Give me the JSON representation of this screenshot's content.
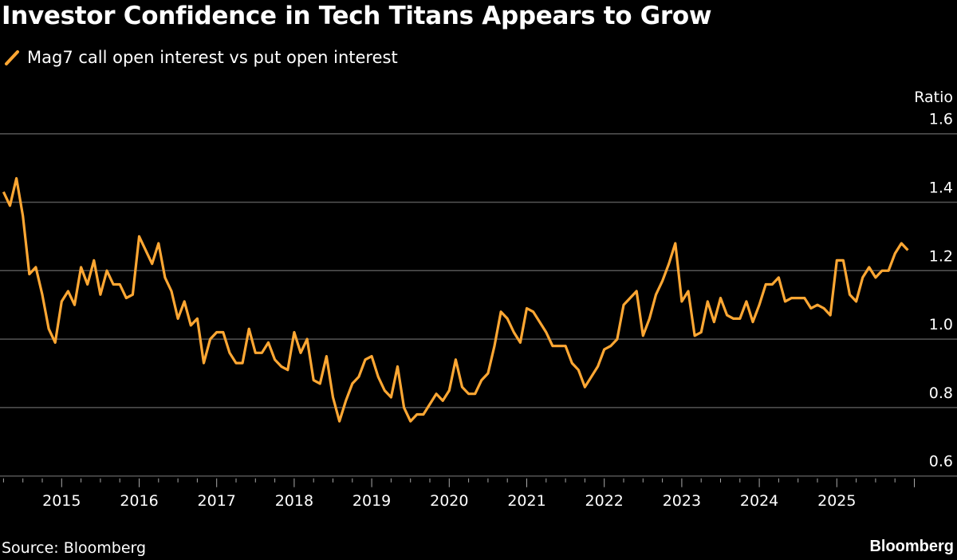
{
  "title": "Investor Confidence in Tech Titans Appears to Grow",
  "source": "Source: Bloomberg",
  "logo": "Bloomberg",
  "colors": {
    "background": "#000000",
    "series": "#ffa733",
    "grid": "#555555",
    "text": "#ffffff"
  },
  "legend": {
    "icon": "slash-line-icon",
    "label": "Mag7 call open interest vs put open interest"
  },
  "chart_data": {
    "type": "line",
    "title": "Investor Confidence in Tech Titans Appears to Grow",
    "ylabel": "Ratio",
    "ylim": [
      0.6,
      1.6
    ],
    "yticks": [
      "0.6",
      "0.8",
      "1.0",
      "1.2",
      "1.4",
      "1.6"
    ],
    "xticks": [
      "2015",
      "2016",
      "2017",
      "2018",
      "2019",
      "2020",
      "2021",
      "2022",
      "2023",
      "2024",
      "2025"
    ],
    "xlim": [
      "2014-04",
      "2025-12"
    ],
    "grid": true,
    "legend_position": "top-left",
    "series": [
      {
        "name": "Mag7 call open interest vs put open interest",
        "x": [
          "2014-04",
          "2014-05",
          "2014-06",
          "2014-07",
          "2014-08",
          "2014-09",
          "2014-10",
          "2014-11",
          "2014-12",
          "2015-01",
          "2015-02",
          "2015-03",
          "2015-04",
          "2015-05",
          "2015-06",
          "2015-07",
          "2015-08",
          "2015-09",
          "2015-10",
          "2015-11",
          "2015-12",
          "2016-01",
          "2016-02",
          "2016-03",
          "2016-04",
          "2016-05",
          "2016-06",
          "2016-07",
          "2016-08",
          "2016-09",
          "2016-10",
          "2016-11",
          "2016-12",
          "2017-01",
          "2017-02",
          "2017-03",
          "2017-04",
          "2017-05",
          "2017-06",
          "2017-07",
          "2017-08",
          "2017-09",
          "2017-10",
          "2017-11",
          "2017-12",
          "2018-01",
          "2018-02",
          "2018-03",
          "2018-04",
          "2018-05",
          "2018-06",
          "2018-07",
          "2018-08",
          "2018-09",
          "2018-10",
          "2018-11",
          "2018-12",
          "2019-01",
          "2019-02",
          "2019-03",
          "2019-04",
          "2019-05",
          "2019-06",
          "2019-07",
          "2019-08",
          "2019-09",
          "2019-10",
          "2019-11",
          "2019-12",
          "2020-01",
          "2020-02",
          "2020-03",
          "2020-04",
          "2020-05",
          "2020-06",
          "2020-07",
          "2020-08",
          "2020-09",
          "2020-10",
          "2020-11",
          "2020-12",
          "2021-01",
          "2021-02",
          "2021-03",
          "2021-04",
          "2021-05",
          "2021-06",
          "2021-07",
          "2021-08",
          "2021-09",
          "2021-10",
          "2021-11",
          "2021-12",
          "2022-01",
          "2022-02",
          "2022-03",
          "2022-04",
          "2022-05",
          "2022-06",
          "2022-07",
          "2022-08",
          "2022-09",
          "2022-10",
          "2022-11",
          "2022-12",
          "2023-01",
          "2023-02",
          "2023-03",
          "2023-04",
          "2023-05",
          "2023-06",
          "2023-07",
          "2023-08",
          "2023-09",
          "2023-10",
          "2023-11",
          "2023-12",
          "2024-01",
          "2024-02",
          "2024-03",
          "2024-04",
          "2024-05",
          "2024-06",
          "2024-07",
          "2024-08",
          "2024-09",
          "2024-10",
          "2024-11",
          "2024-12",
          "2025-01",
          "2025-02",
          "2025-03",
          "2025-04",
          "2025-05",
          "2025-06",
          "2025-07",
          "2025-08",
          "2025-09",
          "2025-10",
          "2025-11",
          "2025-12"
        ],
        "values": [
          1.43,
          1.39,
          1.47,
          1.36,
          1.19,
          1.21,
          1.13,
          1.03,
          0.99,
          1.11,
          1.14,
          1.1,
          1.21,
          1.16,
          1.23,
          1.13,
          1.2,
          1.16,
          1.16,
          1.12,
          1.13,
          1.3,
          1.26,
          1.22,
          1.28,
          1.18,
          1.14,
          1.06,
          1.11,
          1.04,
          1.06,
          0.93,
          1.0,
          1.02,
          1.02,
          0.96,
          0.93,
          0.93,
          1.03,
          0.96,
          0.96,
          0.99,
          0.94,
          0.92,
          0.91,
          1.02,
          0.96,
          1.0,
          0.88,
          0.87,
          0.95,
          0.83,
          0.76,
          0.82,
          0.87,
          0.89,
          0.94,
          0.95,
          0.89,
          0.85,
          0.83,
          0.92,
          0.8,
          0.76,
          0.78,
          0.78,
          0.81,
          0.84,
          0.82,
          0.85,
          0.94,
          0.86,
          0.84,
          0.84,
          0.88,
          0.9,
          0.98,
          1.08,
          1.06,
          1.02,
          0.99,
          1.09,
          1.08,
          1.05,
          1.02,
          0.98,
          0.98,
          0.98,
          0.93,
          0.91,
          0.86,
          0.89,
          0.92,
          0.97,
          0.98,
          1.0,
          1.1,
          1.12,
          1.14,
          1.01,
          1.06,
          1.13,
          1.17,
          1.22,
          1.28,
          1.11,
          1.14,
          1.01,
          1.02,
          1.11,
          1.05,
          1.12,
          1.07,
          1.06,
          1.06,
          1.11,
          1.05,
          1.1,
          1.16,
          1.16,
          1.18,
          1.11,
          1.12,
          1.12,
          1.12,
          1.09,
          1.1,
          1.09,
          1.07,
          1.23,
          1.23,
          1.13,
          1.11,
          1.18,
          1.21,
          1.18,
          1.2,
          1.2,
          1.25,
          1.28,
          1.26
        ]
      }
    ]
  }
}
